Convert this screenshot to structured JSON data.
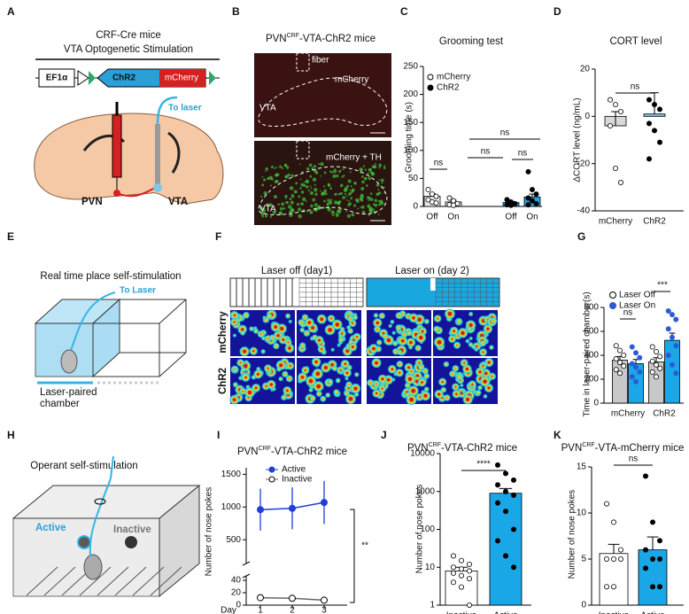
{
  "panels": {
    "A": {
      "letter": "A",
      "line1": "CRF-Cre mice",
      "line2": "VTA Optogenetic Stimulation",
      "promoter": "EF1α",
      "gene1": "ChR2",
      "gene2": "mCherry",
      "laser": "To laser",
      "region1": "PVN",
      "region2": "VTA"
    },
    "B": {
      "letter": "B",
      "title": {
        "a": "PVN",
        "sup": "CRF",
        "b": "-VTA-ChR2 mice"
      },
      "fiber": "fiber",
      "top_label": "mCherry",
      "top_region": "VTA",
      "bottom_label": "mCherry + TH",
      "bottom_region": "VTA"
    },
    "E": {
      "letter": "E",
      "title": "Real time place self-stimulation",
      "laser": "To Laser",
      "chamber1": "Laser-paired",
      "chamber2": "chamber"
    },
    "F": {
      "letter": "F",
      "off": "Laser off (day1)",
      "on": "Laser on (day 2)",
      "row1": "mCherry",
      "row2": "ChR2"
    },
    "H": {
      "letter": "H",
      "title": "Operant self-stimulation",
      "active": "Active",
      "inactive": "Inactive"
    }
  },
  "chart_data": [
    {
      "letter": "C",
      "type": "bar",
      "title": "Grooming test",
      "ylabel": "Grooming time (s)",
      "categories": [
        "Off",
        "On",
        "Off",
        "On"
      ],
      "values": [
        18,
        8,
        7,
        17
      ],
      "errors": [
        5,
        3,
        2,
        5
      ],
      "colors": [
        "#e6e6e6",
        "#e6e6e6",
        "#29a3e0",
        "#29a3e0"
      ],
      "point_colors": [
        "#ffffff",
        "#ffffff",
        "#000000",
        "#000000"
      ],
      "points": [
        [
          30,
          22,
          18,
          12,
          8,
          6
        ],
        [
          15,
          10,
          5,
          3,
          2
        ],
        [
          12,
          8,
          5,
          3,
          2
        ],
        [
          62,
          30,
          22,
          15,
          10,
          5,
          3
        ]
      ],
      "legend": [
        "mCherry",
        "ChR2"
      ],
      "annotations": [
        "ns",
        "ns",
        "ns",
        "ns"
      ],
      "ylim": [
        0,
        250
      ],
      "yticks": [
        0,
        50,
        100,
        150,
        200,
        250
      ]
    },
    {
      "letter": "D",
      "type": "bar",
      "title": "CORT level",
      "ylabel": "ΔCORT level (ng/mL)",
      "categories": [
        "mCherry",
        "ChR2"
      ],
      "values": [
        -4,
        1
      ],
      "errors": [
        6,
        9
      ],
      "colors": [
        "#d9d9d9",
        "#6fc3ea"
      ],
      "point_colors": [
        "#ffffff",
        "#000000"
      ],
      "points": [
        [
          7,
          5,
          2,
          -4,
          -22,
          -28
        ],
        [
          7,
          5,
          3,
          -3,
          -6,
          -11,
          -18
        ]
      ],
      "annotations": [
        "ns"
      ],
      "ylim": [
        -40,
        20
      ],
      "yticks": [
        -40,
        -20,
        0,
        20
      ]
    },
    {
      "letter": "G",
      "type": "bar",
      "ylabel": "Time in laser-paired chamber(s)",
      "categories": [
        "mCherry",
        "ChR2"
      ],
      "series": [
        {
          "name": "Laser Off",
          "color": "#c8c8c8",
          "point_color": "#ffffff",
          "values": [
            360,
            345
          ],
          "errors": [
            30,
            35
          ],
          "points": [
            [
              480,
              440,
              400,
              370,
              340,
              310,
              280,
              250
            ],
            [
              470,
              430,
              390,
              350,
              320,
              290,
              260,
              220
            ]
          ]
        },
        {
          "name": "Laser On",
          "color": "#1aa7e8",
          "point_color": "#2a5bd7",
          "values": [
            330,
            525
          ],
          "errors": [
            35,
            60
          ],
          "points": [
            [
              470,
              420,
              380,
              330,
              300,
              260,
              220,
              180
            ],
            [
              770,
              740,
              700,
              620,
              550,
              480,
              400,
              320,
              250
            ]
          ]
        }
      ],
      "annotations": [
        "ns",
        "***"
      ],
      "ylim": [
        0,
        800
      ],
      "yticks": [
        0,
        200,
        400,
        600,
        800
      ]
    },
    {
      "letter": "I",
      "type": "line",
      "title": {
        "a": "PVN",
        "sup": "CRF",
        "b": "-VTA-ChR2 mice"
      },
      "ylabel": "Number of nose pokes",
      "xlabel": "Day",
      "x": [
        1,
        2,
        3
      ],
      "xlim": [
        0,
        3.5
      ],
      "xticks": [
        1,
        2,
        3
      ],
      "series": [
        {
          "name": "Active",
          "color": "#1f3fd6",
          "values": [
            960,
            980,
            1070
          ],
          "errors": [
            320,
            320,
            330
          ]
        },
        {
          "name": "Inactive",
          "color": "#ffffff",
          "values": [
            12,
            11,
            8
          ],
          "errors": [
            1,
            1,
            1
          ]
        }
      ],
      "ylim": [
        0,
        40
      ],
      "yticks": [
        0,
        20,
        40
      ],
      "ylim_upper": [
        150,
        1600
      ],
      "yticks_upper": [
        500,
        1000,
        1500
      ],
      "annotations": [
        "**"
      ]
    },
    {
      "letter": "J",
      "type": "bar",
      "title": {
        "a": "PVN",
        "sup": "CRF",
        "b": "-VTA-ChR2 mice"
      },
      "ylabel": "Number of nose pokes",
      "log_scale": true,
      "categories": [
        "Inactive",
        "Active"
      ],
      "values": [
        8,
        900
      ],
      "errors": [
        2,
        300
      ],
      "colors": [
        "#ffffff",
        "#1aa7e8"
      ],
      "point_colors": [
        "#ffffff",
        "#000000"
      ],
      "points": [
        [
          20,
          15,
          12,
          10,
          9,
          8,
          7,
          6,
          5,
          4,
          3,
          1
        ],
        [
          5000,
          3000,
          2000,
          1500,
          1000,
          800,
          500,
          300,
          100,
          50,
          20,
          10
        ]
      ],
      "annotations": [
        "****"
      ],
      "ylim": [
        1,
        10000
      ],
      "yticks": [
        1,
        10,
        100,
        1000,
        10000
      ]
    },
    {
      "letter": "K",
      "type": "bar",
      "title": {
        "a": "PVN",
        "sup": "CRF",
        "b": "-VTA-mCherry mice"
      },
      "ylabel": "Number of nose pokes",
      "categories": [
        "Inactive",
        "Active"
      ],
      "values": [
        5.6,
        6.0
      ],
      "errors": [
        1.0,
        1.4
      ],
      "colors": [
        "#ffffff",
        "#1aa7e8"
      ],
      "point_colors": [
        "#ffffff",
        "#000000"
      ],
      "points": [
        [
          11,
          9,
          6,
          5,
          5,
          5,
          2,
          2
        ],
        [
          14,
          9,
          7,
          6,
          5,
          5,
          4,
          2,
          2
        ]
      ],
      "annotations": [
        "ns"
      ],
      "ylim": [
        0,
        15
      ],
      "yticks": [
        0,
        5,
        10,
        15
      ]
    }
  ]
}
